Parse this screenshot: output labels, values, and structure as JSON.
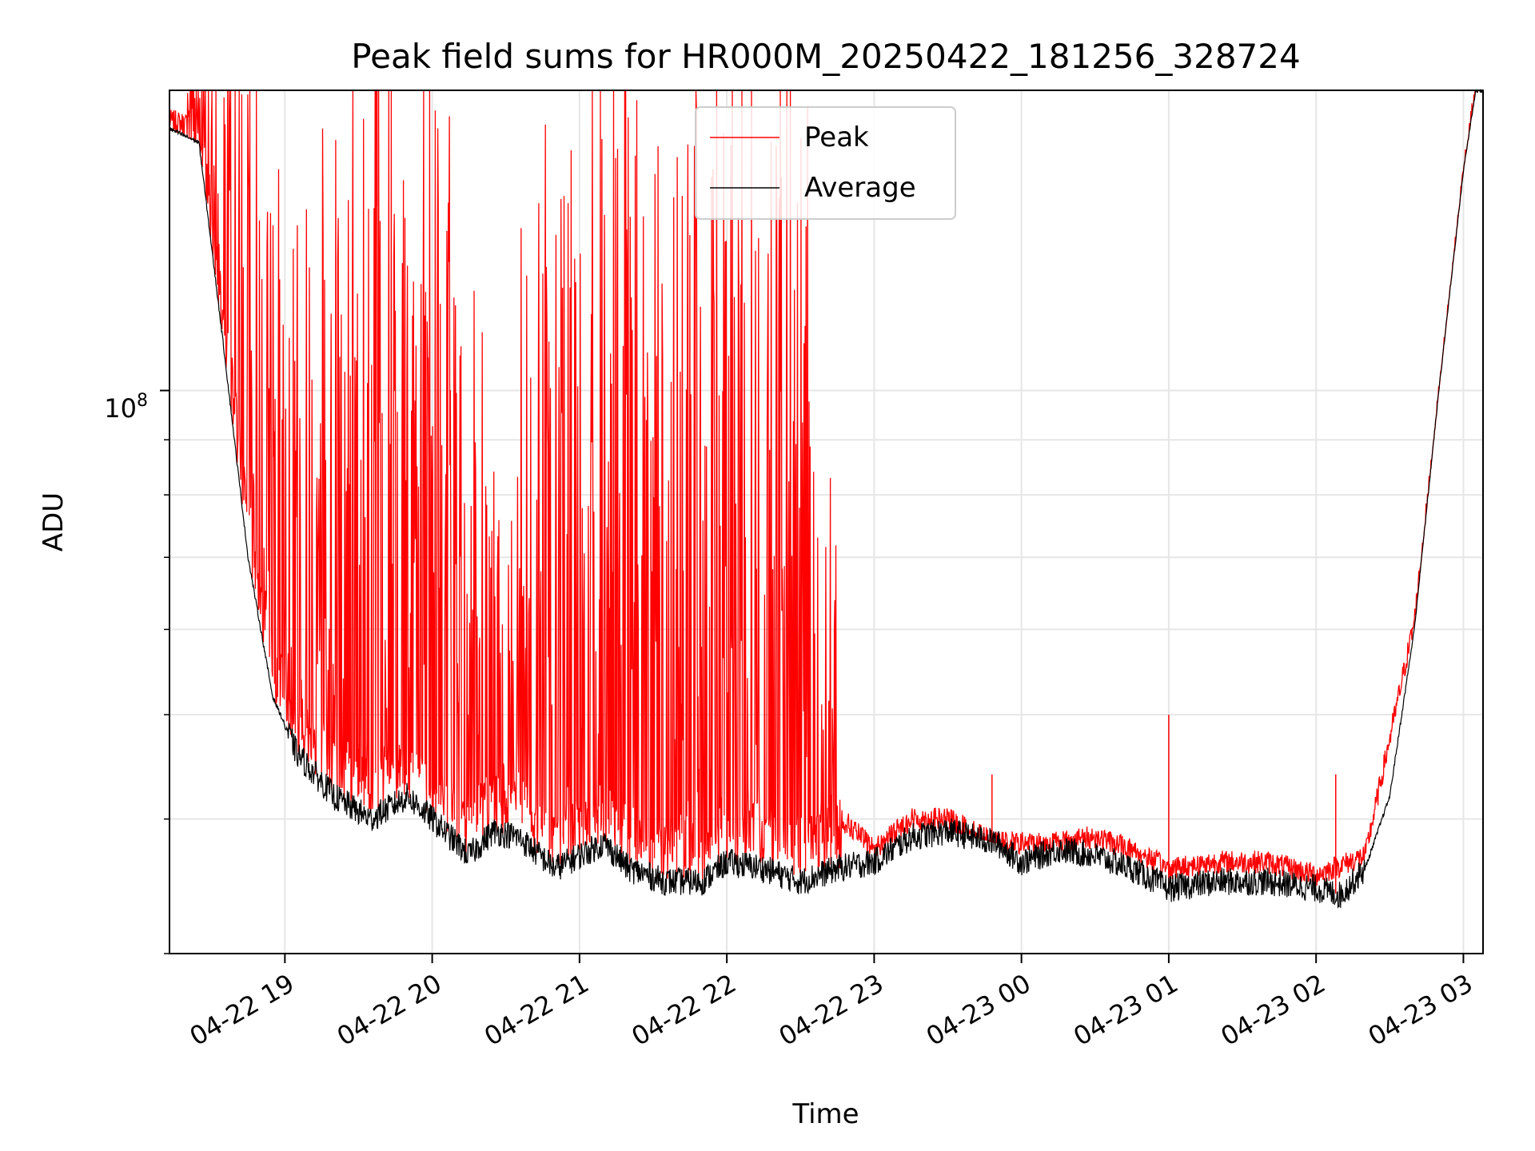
{
  "chart_data": {
    "type": "line",
    "title": "Peak field sums for HR000M_20250422_181256_328724",
    "xlabel": "Time",
    "ylabel": "ADU",
    "yscale": "log",
    "ylim": [
      30000000,
      190000000
    ],
    "xlim": [
      "2025-04-22 18:13",
      "2025-04-23 03:08"
    ],
    "y_tick_label": "10",
    "y_tick_label_exponent": "8",
    "x_ticks": [
      {
        "time": "2025-04-22 19:00",
        "label": "04-22 19"
      },
      {
        "time": "2025-04-22 20:00",
        "label": "04-22 20"
      },
      {
        "time": "2025-04-22 21:00",
        "label": "04-22 21"
      },
      {
        "time": "2025-04-22 22:00",
        "label": "04-22 22"
      },
      {
        "time": "2025-04-22 23:00",
        "label": "04-22 23"
      },
      {
        "time": "2025-04-23 00:00",
        "label": "04-23 00"
      },
      {
        "time": "2025-04-23 01:00",
        "label": "04-23 01"
      },
      {
        "time": "2025-04-23 02:00",
        "label": "04-23 02"
      },
      {
        "time": "2025-04-23 03:00",
        "label": "04-23 03"
      }
    ],
    "grid": true,
    "legend_position": "top-center",
    "series": [
      {
        "name": "Average",
        "color": "#000000",
        "x": [
          "2025-04-22 18:13",
          "2025-04-22 18:25",
          "2025-04-22 18:35",
          "2025-04-22 18:45",
          "2025-04-22 18:55",
          "2025-04-22 19:05",
          "2025-04-22 19:20",
          "2025-04-22 19:35",
          "2025-04-22 19:50",
          "2025-04-22 20:00",
          "2025-04-22 20:15",
          "2025-04-22 20:25",
          "2025-04-22 20:35",
          "2025-04-22 20:50",
          "2025-04-22 21:00",
          "2025-04-22 21:10",
          "2025-04-22 21:20",
          "2025-04-22 21:35",
          "2025-04-22 21:50",
          "2025-04-22 22:00",
          "2025-04-22 22:15",
          "2025-04-22 22:30",
          "2025-04-22 22:45",
          "2025-04-22 23:00",
          "2025-04-22 23:15",
          "2025-04-22 23:30",
          "2025-04-22 23:50",
          "2025-04-23 00:00",
          "2025-04-23 00:15",
          "2025-04-23 00:30",
          "2025-04-23 00:45",
          "2025-04-23 01:00",
          "2025-04-23 01:20",
          "2025-04-23 01:40",
          "2025-04-23 02:00",
          "2025-04-23 02:10",
          "2025-04-23 02:20",
          "2025-04-23 02:30",
          "2025-04-23 02:40",
          "2025-04-23 02:50",
          "2025-04-23 03:00",
          "2025-04-23 03:05"
        ],
        "values": [
          175000000,
          170000000,
          110000000,
          70000000,
          52000000,
          46000000,
          42000000,
          40000000,
          42000000,
          40000000,
          37000000,
          39000000,
          38500000,
          36000000,
          37000000,
          38000000,
          36000000,
          35000000,
          35000000,
          36500000,
          36000000,
          35000000,
          36000000,
          36500000,
          38500000,
          39000000,
          38000000,
          36500000,
          37500000,
          37000000,
          36000000,
          34500000,
          35000000,
          35000000,
          34500000,
          34000000,
          36000000,
          42000000,
          60000000,
          100000000,
          160000000,
          190000000
        ]
      },
      {
        "name": "Peak",
        "color": "#ff0000",
        "x": [
          "2025-04-22 18:13",
          "2025-04-22 18:25",
          "2025-04-22 18:40",
          "2025-04-22 18:55",
          "2025-04-22 19:10",
          "2025-04-22 19:25",
          "2025-04-22 19:40",
          "2025-04-22 19:55",
          "2025-04-22 20:10",
          "2025-04-22 20:25",
          "2025-04-22 20:40",
          "2025-04-22 20:55",
          "2025-04-22 21:10",
          "2025-04-22 21:25",
          "2025-04-22 21:40",
          "2025-04-22 21:55",
          "2025-04-22 22:10",
          "2025-04-22 22:25",
          "2025-04-22 22:40",
          "2025-04-22 22:47",
          "2025-04-22 23:00",
          "2025-04-22 23:15",
          "2025-04-22 23:30",
          "2025-04-22 23:50",
          "2025-04-23 00:10",
          "2025-04-23 00:30",
          "2025-04-23 00:45",
          "2025-04-23 01:00",
          "2025-04-23 01:20",
          "2025-04-23 01:40",
          "2025-04-23 02:00",
          "2025-04-23 02:20",
          "2025-04-23 02:40",
          "2025-04-23 03:00",
          "2025-04-23 03:05"
        ],
        "values": [
          178000000,
          176000000,
          140000000,
          110000000,
          90000000,
          120000000,
          140000000,
          130000000,
          100000000,
          55000000,
          90000000,
          110000000,
          120000000,
          130000000,
          110000000,
          120000000,
          125000000,
          120000000,
          80000000,
          40000000,
          37500000,
          40000000,
          40000000,
          38000000,
          38000000,
          38500000,
          37500000,
          36000000,
          36500000,
          36500000,
          35500000,
          37000000,
          61000000,
          160000000,
          190000000
        ]
      }
    ],
    "notable_spikes": [
      {
        "series": "Peak",
        "time": "2025-04-22 23:48",
        "value": 44000000
      },
      {
        "series": "Peak",
        "time": "2025-04-23 01:00",
        "value": 50000000
      },
      {
        "series": "Peak",
        "time": "2025-04-23 02:08",
        "value": 44000000
      }
    ]
  }
}
